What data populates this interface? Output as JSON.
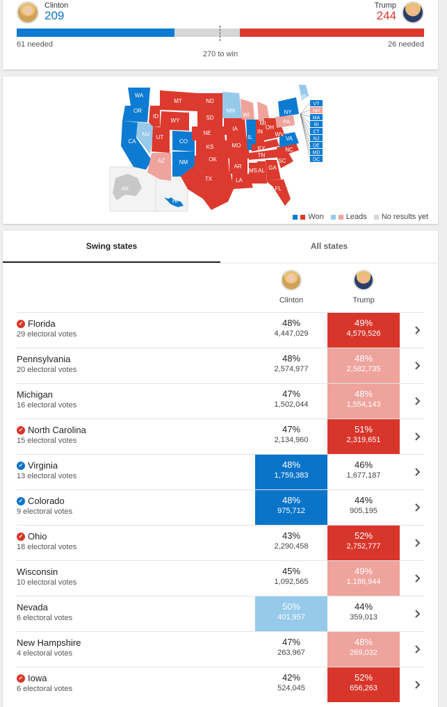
{
  "header": {
    "left": {
      "name": "Clinton",
      "votes": "209",
      "needed": "61 needed"
    },
    "right": {
      "name": "Trump",
      "votes": "244",
      "needed": "26 needed"
    },
    "to_win": "270 to win",
    "clinton_fraction": 0.3871,
    "trump_fraction": 0.4519
  },
  "map": {
    "labels_won_clinton": [
      "WA",
      "OR",
      "CA",
      "CO",
      "NM",
      "IL",
      "NY",
      "VA",
      "VT",
      "MA",
      "RI",
      "CT",
      "NJ",
      "DE",
      "MD",
      "DC",
      "HI"
    ],
    "labels_won_trump": [
      "MT",
      "ND",
      "SD",
      "WY",
      "ID",
      "UT",
      "NE",
      "KS",
      "OK",
      "TX",
      "MO",
      "AR",
      "LA",
      "MS",
      "AL",
      "GA",
      "SC",
      "NC",
      "TN",
      "KY",
      "IN",
      "OH",
      "WV",
      "FL",
      "IA",
      "AK"
    ],
    "labels_lead_clinton": [
      "NV",
      "MN",
      "ME"
    ],
    "labels_lead_trump": [
      "AZ",
      "WI",
      "MI",
      "PA",
      "NH"
    ],
    "legend": {
      "won": "Won",
      "leads": "Leads",
      "no_results": "No results yet"
    },
    "colors": {
      "won_blue": "#0d7bd1",
      "won_red": "#dc3a2e",
      "lead_blue": "#97c9ea",
      "lead_red": "#eea39d",
      "none": "#d6d6d6"
    }
  },
  "tabs": {
    "swing": "Swing states",
    "all": "All states"
  },
  "columns": {
    "clinton": "Clinton",
    "trump": "Trump"
  },
  "rows": [
    {
      "state": "Florida",
      "ev": "29 electoral votes",
      "check": "red",
      "c_pct": "48%",
      "c_num": "4,447,029",
      "t_pct": "49%",
      "t_num": "4,579,526",
      "c_style": "",
      "t_style": "dk-r"
    },
    {
      "state": "Pennsylvania",
      "ev": "20 electoral votes",
      "check": "",
      "c_pct": "48%",
      "c_num": "2,574,977",
      "t_pct": "48%",
      "t_num": "2,582,735",
      "c_style": "",
      "t_style": "lt-r"
    },
    {
      "state": "Michigan",
      "ev": "16 electoral votes",
      "check": "",
      "c_pct": "47%",
      "c_num": "1,502,044",
      "t_pct": "48%",
      "t_num": "1,554,143",
      "c_style": "",
      "t_style": "lt-r"
    },
    {
      "state": "North Carolina",
      "ev": "15 electoral votes",
      "check": "red",
      "c_pct": "47%",
      "c_num": "2,134,960",
      "t_pct": "51%",
      "t_num": "2,319,651",
      "c_style": "",
      "t_style": "dk-r"
    },
    {
      "state": "Virginia",
      "ev": "13 electoral votes",
      "check": "blue",
      "c_pct": "48%",
      "c_num": "1,759,383",
      "t_pct": "46%",
      "t_num": "1,677,187",
      "c_style": "dk-b",
      "t_style": ""
    },
    {
      "state": "Colorado",
      "ev": "9 electoral votes",
      "check": "blue",
      "c_pct": "48%",
      "c_num": "975,712",
      "t_pct": "44%",
      "t_num": "905,195",
      "c_style": "dk-b",
      "t_style": ""
    },
    {
      "state": "Ohio",
      "ev": "18 electoral votes",
      "check": "red",
      "c_pct": "43%",
      "c_num": "2,290,458",
      "t_pct": "52%",
      "t_num": "2,752,777",
      "c_style": "",
      "t_style": "dk-r"
    },
    {
      "state": "Wisconsin",
      "ev": "10 electoral votes",
      "check": "",
      "c_pct": "45%",
      "c_num": "1,092,565",
      "t_pct": "49%",
      "t_num": "1,186,944",
      "c_style": "",
      "t_style": "lt-r"
    },
    {
      "state": "Nevada",
      "ev": "6 electoral votes",
      "check": "",
      "c_pct": "50%",
      "c_num": "401,957",
      "t_pct": "44%",
      "t_num": "359,013",
      "c_style": "lt-b",
      "t_style": ""
    },
    {
      "state": "New Hampshire",
      "ev": "4 electoral votes",
      "check": "",
      "c_pct": "47%",
      "c_num": "263,967",
      "t_pct": "48%",
      "t_num": "269,032",
      "c_style": "",
      "t_style": "lt-r"
    },
    {
      "state": "Iowa",
      "ev": "6 electoral votes",
      "check": "red",
      "c_pct": "42%",
      "c_num": "524,045",
      "t_pct": "52%",
      "t_num": "656,263",
      "c_style": "",
      "t_style": "dk-r"
    }
  ]
}
